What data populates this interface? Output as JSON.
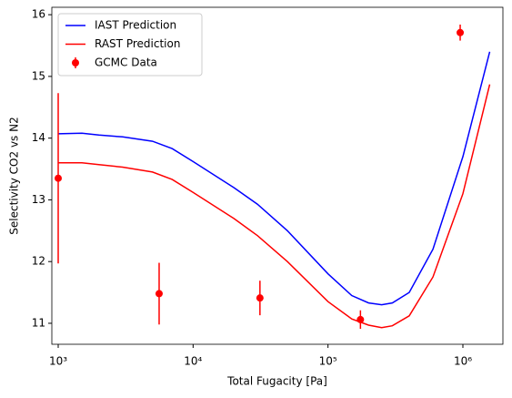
{
  "chart_data": {
    "type": "line",
    "x_label": "Total Fugacity [Pa]",
    "y_label": "Selectivity CO2 vs N2",
    "xscale": "log",
    "xlim": [
      897,
      1980000
    ],
    "ylim": [
      10.66,
      16.12
    ],
    "xticks": [
      {
        "value": 1000,
        "label": "10³"
      },
      {
        "value": 10000,
        "label": "10⁴"
      },
      {
        "value": 100000,
        "label": "10⁵"
      },
      {
        "value": 1000000,
        "label": "10⁶"
      }
    ],
    "yticks": [
      11,
      12,
      13,
      14,
      15,
      16
    ],
    "legend_loc": "upper left",
    "series": [
      {
        "name": "IAST Prediction",
        "color": "#0000ff",
        "x": [
          1000,
          1500,
          2000,
          3000,
          5000,
          7000,
          10000,
          20000,
          30000,
          50000,
          100000,
          150000,
          200000,
          250000,
          300000,
          400000,
          600000,
          1000000,
          1580000
        ],
        "values": [
          14.07,
          14.08,
          14.05,
          14.02,
          13.95,
          13.83,
          13.62,
          13.2,
          12.93,
          12.5,
          11.8,
          11.45,
          11.33,
          11.3,
          11.33,
          11.5,
          12.2,
          13.7,
          15.4
        ]
      },
      {
        "name": "RAST Prediction",
        "color": "#ff0000",
        "x": [
          1000,
          1500,
          2000,
          3000,
          5000,
          7000,
          10000,
          20000,
          30000,
          50000,
          100000,
          150000,
          200000,
          250000,
          300000,
          400000,
          600000,
          1000000,
          1580000
        ],
        "values": [
          13.6,
          13.6,
          13.57,
          13.53,
          13.45,
          13.33,
          13.12,
          12.7,
          12.42,
          12.0,
          11.35,
          11.07,
          10.97,
          10.93,
          10.96,
          11.12,
          11.75,
          13.1,
          14.87
        ]
      },
      {
        "name": "GCMC Data",
        "color": "#ff0000",
        "kind": "errorbar",
        "x": [
          1000,
          5600,
          31300,
          174000,
          955000
        ],
        "values": [
          13.35,
          11.48,
          11.41,
          11.06,
          15.71
        ],
        "errors": [
          1.38,
          0.5,
          0.28,
          0.15,
          0.13
        ]
      }
    ]
  }
}
